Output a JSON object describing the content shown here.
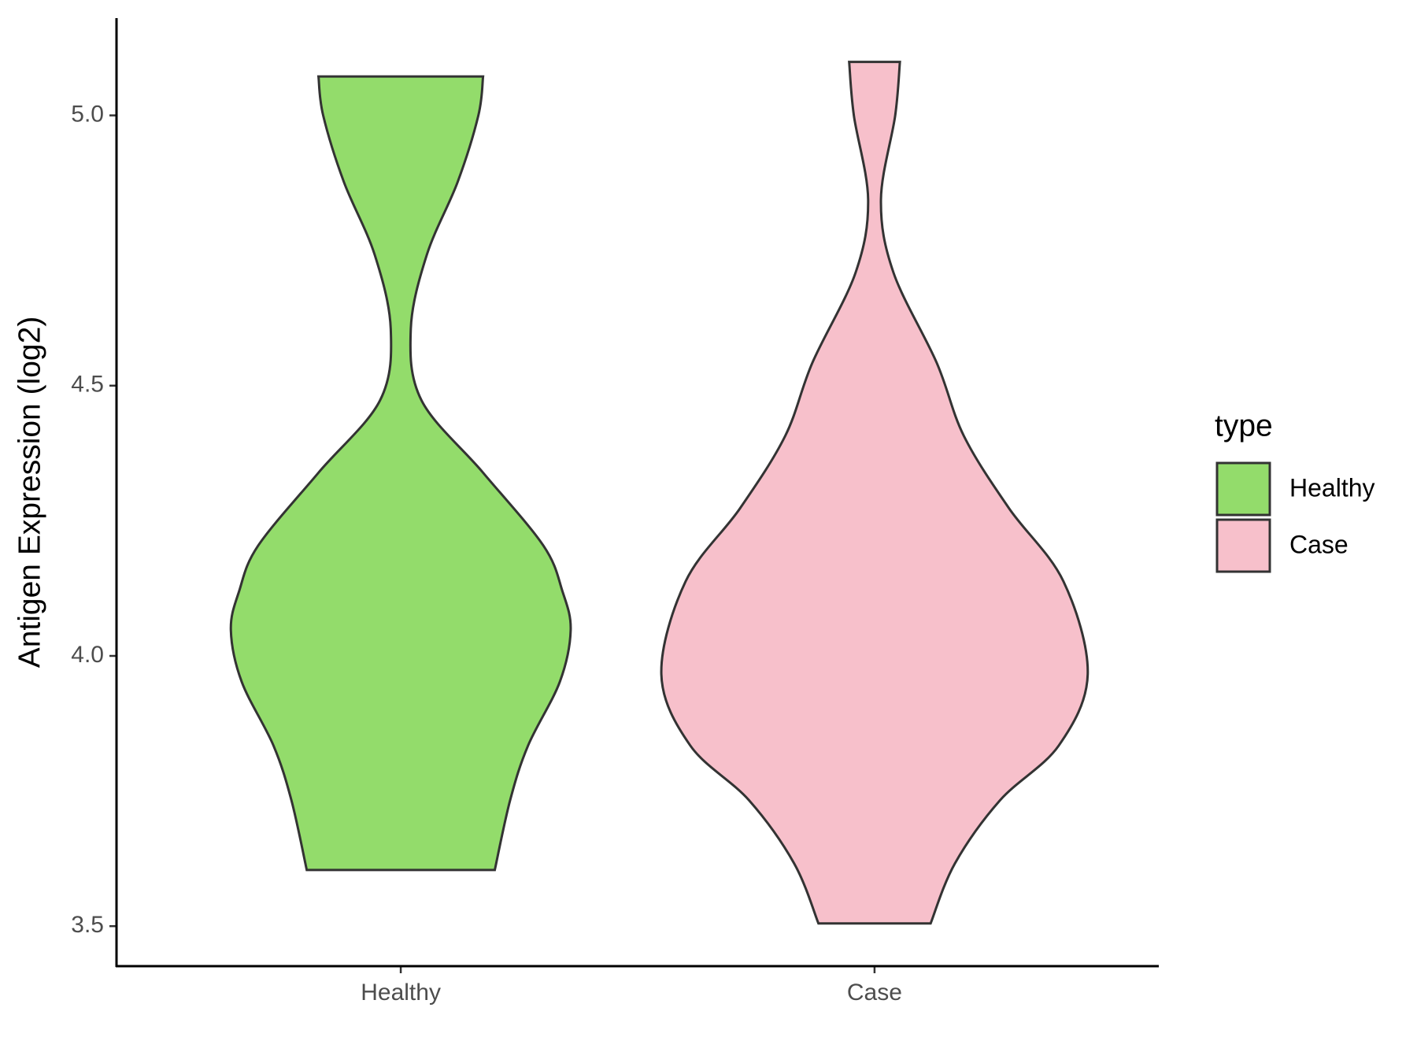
{
  "chart_data": {
    "type": "violin",
    "y_label": "Antigen Expression (log2)",
    "categories": [
      "Healthy",
      "Case"
    ],
    "legend_title": "type",
    "legend_position": "right",
    "outline_color": "#333333",
    "series": [
      {
        "name": "Healthy",
        "color": "#93dc6b",
        "y": [
          5.072,
          5.0,
          4.877,
          4.743,
          4.605,
          4.473,
          4.339,
          4.204,
          4.12,
          4.048,
          3.952,
          3.834,
          3.733,
          3.604
        ],
        "density": [
          0.386,
          0.364,
          0.267,
          0.123,
          0.047,
          0.097,
          0.386,
          0.669,
          0.758,
          0.797,
          0.746,
          0.597,
          0.513,
          0.441
        ]
      },
      {
        "name": "Case",
        "color": "#f7c0cb",
        "y": [
          5.099,
          5.0,
          4.844,
          4.709,
          4.542,
          4.407,
          4.273,
          4.138,
          3.966,
          3.834,
          3.733,
          3.616,
          3.505
        ],
        "density": [
          0.119,
          0.097,
          0.03,
          0.089,
          0.292,
          0.419,
          0.631,
          0.886,
          1.0,
          0.864,
          0.589,
          0.377,
          0.263
        ]
      }
    ],
    "ylim": [
      3.426,
      5.18
    ],
    "yticks": [
      3.5,
      {
        "value": 4,
        "label": "4.0"
      },
      4.5,
      {
        "value": 5,
        "label": "5.0"
      }
    ]
  }
}
